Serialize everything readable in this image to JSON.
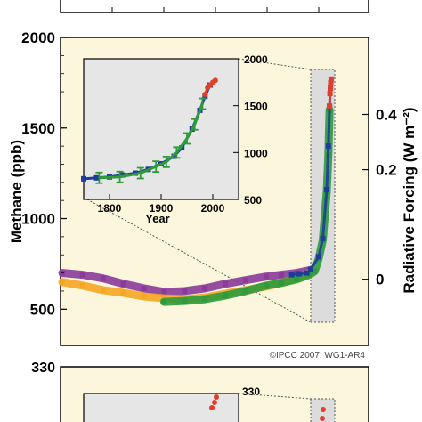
{
  "colors": {
    "panel_bg": "#fcf7dc",
    "inset_bg": "#e6e6e6",
    "highlight_box": "#dcdcdc",
    "purple": "#8a3a9a",
    "orange": "#f5a623",
    "green": "#2e9a3c",
    "blue": "#1e3c9c",
    "red": "#e0402a"
  },
  "top_panel_stub": {
    "description_free": true
  },
  "chart_data": [
    {
      "type": "line",
      "panel": "main",
      "ylabel": "Methane (ppb)",
      "ylabel_right": "Radiative Forcing (W m⁻²)",
      "ylim": [
        300,
        2000
      ],
      "xlim": [
        -8000,
        2050
      ],
      "y_ticks": [
        "2000",
        "1500",
        "1000",
        "500"
      ],
      "y_tick_values": [
        2000,
        1500,
        1000,
        500
      ],
      "right_ticks": [
        "0.4",
        "0.2",
        "0"
      ],
      "right_tick_values": [
        1575,
        1270,
        665
      ],
      "series": [
        {
          "color": "purple",
          "x": [
            -8000,
            -7200,
            -6400,
            -5600,
            -4800,
            -4000,
            -3200,
            -2400,
            -1600,
            -800,
            0,
            600,
            1200,
            1700
          ],
          "y": [
            700,
            690,
            670,
            640,
            615,
            595,
            600,
            615,
            640,
            660,
            680,
            690,
            700,
            715
          ]
        },
        {
          "color": "orange",
          "x": [
            -8000,
            -7200,
            -6400,
            -5600,
            -4800,
            -4000,
            -3200,
            -2400,
            -1600,
            -800,
            0,
            600,
            1200,
            1700
          ],
          "y": [
            650,
            630,
            605,
            590,
            570,
            560,
            555,
            565,
            585,
            605,
            625,
            645,
            670,
            700
          ]
        },
        {
          "color": "green",
          "x": [
            -4000,
            -3200,
            -2400,
            -1600,
            -800,
            0,
            600,
            1200,
            1700,
            1800,
            1850,
            1900,
            1950,
            1970,
            1985
          ],
          "y": [
            540,
            545,
            555,
            575,
            600,
            630,
            645,
            665,
            690,
            710,
            780,
            880,
            1150,
            1350,
            1600
          ]
        },
        {
          "color": "blue",
          "x": [
            1000,
            1300,
            1600,
            1750,
            1850,
            1900,
            1950,
            1970,
            1985,
            1995
          ],
          "y": [
            690,
            695,
            700,
            720,
            790,
            890,
            1160,
            1400,
            1620,
            1720
          ]
        },
        {
          "color": "red",
          "x": [
            1985,
            1990,
            1995,
            2000,
            2005
          ],
          "y": [
            1620,
            1690,
            1720,
            1750,
            1770
          ]
        }
      ]
    },
    {
      "type": "line",
      "panel": "inset",
      "xlabel": "Year",
      "xlim": [
        1750,
        2050
      ],
      "ylim": [
        500,
        2000
      ],
      "x_ticks": [
        "1800",
        "1900",
        "2000"
      ],
      "x_tick_values": [
        1800,
        1900,
        2000
      ],
      "y_ticks": [
        "2000",
        "1500",
        "1000",
        "500"
      ],
      "y_tick_values": [
        2000,
        1500,
        1000,
        500
      ],
      "series": [
        {
          "color": "blue",
          "x": [
            1750,
            1775,
            1800,
            1825,
            1850,
            1875,
            1900,
            1925,
            1940,
            1960,
            1975,
            1985,
            1995
          ],
          "y": [
            720,
            730,
            740,
            760,
            780,
            820,
            880,
            960,
            1050,
            1250,
            1450,
            1600,
            1720
          ]
        },
        {
          "color": "green",
          "x": [
            1780,
            1820,
            1860,
            1890,
            1910,
            1930,
            1950,
            1965,
            1980
          ],
          "y": [
            730,
            740,
            780,
            850,
            900,
            1000,
            1150,
            1300,
            1520
          ]
        },
        {
          "color": "red",
          "x": [
            1985,
            1990,
            1995,
            2000,
            2005
          ],
          "y": [
            1620,
            1690,
            1720,
            1750,
            1770
          ]
        }
      ]
    },
    {
      "type": "line",
      "panel": "bottom_partial",
      "y_ticks": [
        "330"
      ],
      "inset_y_ticks": [
        "330"
      ]
    }
  ],
  "credit": "©IPCC 2007: WG1-AR4"
}
